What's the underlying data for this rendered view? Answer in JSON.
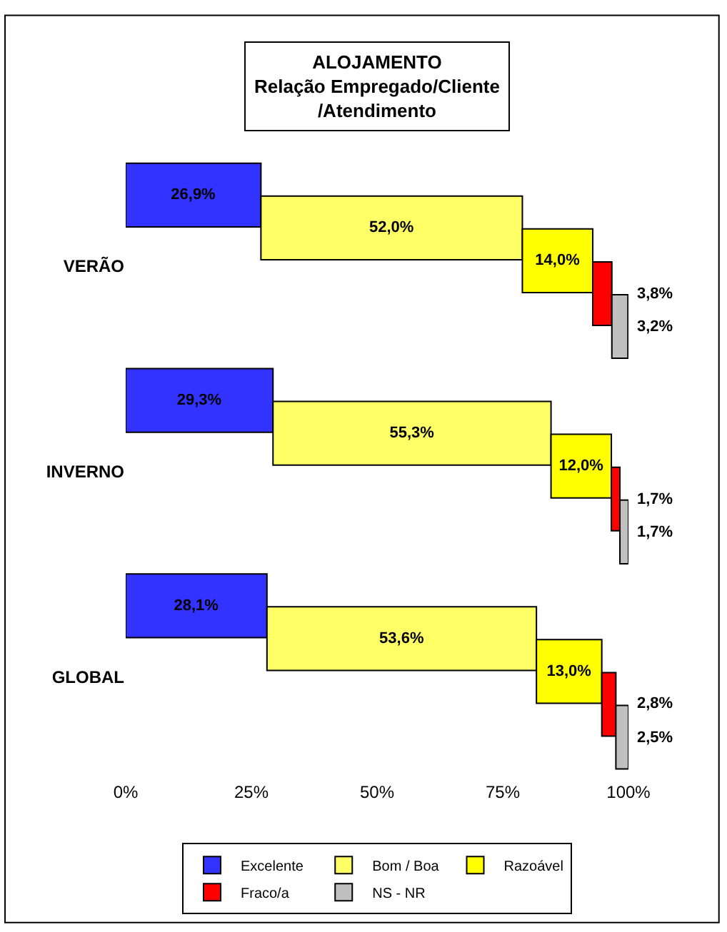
{
  "chart_data": {
    "type": "bar",
    "orientation": "horizontal",
    "stacked": true,
    "title": "ALOJAMENTO\nRelação Empregado/Cliente\n/Atendimento",
    "categories": [
      "VERÃO",
      "INVERNO",
      "GLOBAL"
    ],
    "series": [
      {
        "name": "Excelente",
        "color": "#3333ff",
        "values": [
          26.9,
          29.3,
          28.1
        ],
        "value_labels": [
          "26,9%",
          "29,3%",
          "28,1%"
        ]
      },
      {
        "name": "Bom / Boa",
        "color": "#ffff66",
        "values": [
          52.0,
          55.3,
          53.6
        ],
        "value_labels": [
          "52,0%",
          "55,3%",
          "53,6%"
        ]
      },
      {
        "name": "Razoável",
        "color": "#ffff00",
        "values": [
          14.0,
          12.0,
          13.0
        ],
        "value_labels": [
          "14,0%",
          "12,0%",
          "13,0%"
        ]
      },
      {
        "name": "Fraco/a",
        "color": "#ff0000",
        "values": [
          3.8,
          1.7,
          2.8
        ],
        "value_labels": [
          "3,8%",
          "1,7%",
          "2,8%"
        ]
      },
      {
        "name": "NS - NR",
        "color": "#c0c0c0",
        "values": [
          3.2,
          1.7,
          2.5
        ],
        "value_labels": [
          "3,2%",
          "1,7%",
          "2,5%"
        ]
      }
    ],
    "xlim": [
      0,
      100
    ],
    "xticks": [
      {
        "value": 0,
        "label": "0%"
      },
      {
        "value": 25,
        "label": "25%"
      },
      {
        "value": 50,
        "label": "50%"
      },
      {
        "value": 75,
        "label": "75%"
      },
      {
        "value": 100,
        "label": "100%"
      }
    ],
    "legend": "bottom"
  }
}
